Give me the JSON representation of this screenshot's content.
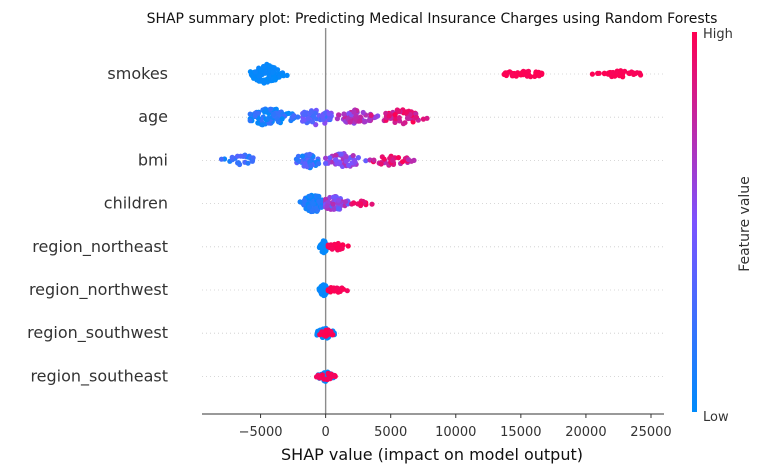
{
  "chart_data": {
    "type": "scatter",
    "subtype": "shap-beeswarm",
    "title": "SHAP summary plot: Predicting Medical Insurance Charges using Random Forests",
    "xlabel": "SHAP value (impact on model output)",
    "ylabel": "",
    "xlim": [
      -9500,
      26000
    ],
    "xticks": [
      -5000,
      0,
      5000,
      10000,
      15000,
      20000,
      25000
    ],
    "xtick_labels": [
      "−5000",
      "0",
      "5000",
      "10000",
      "15000",
      "20000",
      "25000"
    ],
    "grid": false,
    "colorbar": {
      "title": "Feature value",
      "high_label": "High",
      "low_label": "Low",
      "low_color": "#008bfb",
      "high_color": "#ff0051"
    },
    "features": [
      {
        "name": "smokes",
        "clusters": [
          {
            "min": -6000,
            "max": -2900,
            "center": -4600,
            "count": 95,
            "spread": 1.0,
            "value_low": 0.0,
            "value_high": 0.05
          },
          {
            "min": 12000,
            "max": 16600,
            "center": 15200,
            "count": 40,
            "spread": 0.35,
            "value_low": 0.97,
            "value_high": 1.0
          },
          {
            "min": 20500,
            "max": 24200,
            "center": 22600,
            "count": 40,
            "spread": 0.35,
            "value_low": 0.97,
            "value_high": 1.0
          }
        ]
      },
      {
        "name": "age",
        "clusters": [
          {
            "min": -5800,
            "max": -1500,
            "center": -4300,
            "count": 80,
            "spread": 1.0,
            "value_low": 0.0,
            "value_high": 0.25
          },
          {
            "min": -2500,
            "max": 1500,
            "center": -700,
            "count": 60,
            "spread": 0.8,
            "value_low": 0.2,
            "value_high": 0.55
          },
          {
            "min": 800,
            "max": 4000,
            "center": 2300,
            "count": 55,
            "spread": 0.8,
            "value_low": 0.5,
            "value_high": 0.8
          },
          {
            "min": 3500,
            "max": 8000,
            "center": 5800,
            "count": 55,
            "spread": 0.8,
            "value_low": 0.75,
            "value_high": 1.0
          }
        ]
      },
      {
        "name": "bmi",
        "clusters": [
          {
            "min": -8000,
            "max": -5000,
            "center": -6300,
            "count": 25,
            "spread": 0.6,
            "value_low": 0.0,
            "value_high": 0.35
          },
          {
            "min": -2300,
            "max": 0,
            "center": -1300,
            "count": 45,
            "spread": 0.9,
            "value_low": 0.05,
            "value_high": 0.4
          },
          {
            "min": 0,
            "max": 3500,
            "center": 1300,
            "count": 55,
            "spread": 0.8,
            "value_low": 0.4,
            "value_high": 0.75
          },
          {
            "min": 3000,
            "max": 7300,
            "center": 5000,
            "count": 35,
            "spread": 0.5,
            "value_low": 0.7,
            "value_high": 1.0
          }
        ]
      },
      {
        "name": "children",
        "clusters": [
          {
            "min": -2300,
            "max": 0,
            "center": -900,
            "count": 70,
            "spread": 1.0,
            "value_low": 0.0,
            "value_high": 0.2
          },
          {
            "min": 0,
            "max": 2300,
            "center": 700,
            "count": 55,
            "spread": 0.85,
            "value_low": 0.35,
            "value_high": 0.8
          },
          {
            "min": 2000,
            "max": 3800,
            "center": 2700,
            "count": 15,
            "spread": 0.35,
            "value_low": 0.85,
            "value_high": 1.0
          }
        ]
      },
      {
        "name": "region_northeast",
        "clusters": [
          {
            "min": -500,
            "max": 200,
            "center": -150,
            "count": 50,
            "spread": 0.7,
            "value_low": 0.0,
            "value_high": 0.05
          },
          {
            "min": 200,
            "max": 2400,
            "center": 900,
            "count": 25,
            "spread": 0.4,
            "value_low": 0.95,
            "value_high": 1.0
          }
        ]
      },
      {
        "name": "region_northwest",
        "clusters": [
          {
            "min": -500,
            "max": 200,
            "center": -150,
            "count": 50,
            "spread": 0.65,
            "value_low": 0.0,
            "value_high": 0.05
          },
          {
            "min": 200,
            "max": 2600,
            "center": 800,
            "count": 20,
            "spread": 0.35,
            "value_low": 0.95,
            "value_high": 1.0
          }
        ]
      },
      {
        "name": "region_southwest",
        "clusters": [
          {
            "min": -800,
            "max": 800,
            "center": 0,
            "count": 50,
            "spread": 0.55,
            "value_low": 0.0,
            "value_high": 0.05
          },
          {
            "min": -800,
            "max": 700,
            "center": 100,
            "count": 20,
            "spread": 0.4,
            "value_low": 0.95,
            "value_high": 1.0
          }
        ]
      },
      {
        "name": "region_southeast",
        "clusters": [
          {
            "min": -700,
            "max": 600,
            "center": 0,
            "count": 50,
            "spread": 0.55,
            "value_low": 0.0,
            "value_high": 0.05
          },
          {
            "min": -700,
            "max": 1200,
            "center": 100,
            "count": 18,
            "spread": 0.4,
            "value_low": 0.95,
            "value_high": 1.0
          }
        ]
      }
    ]
  }
}
